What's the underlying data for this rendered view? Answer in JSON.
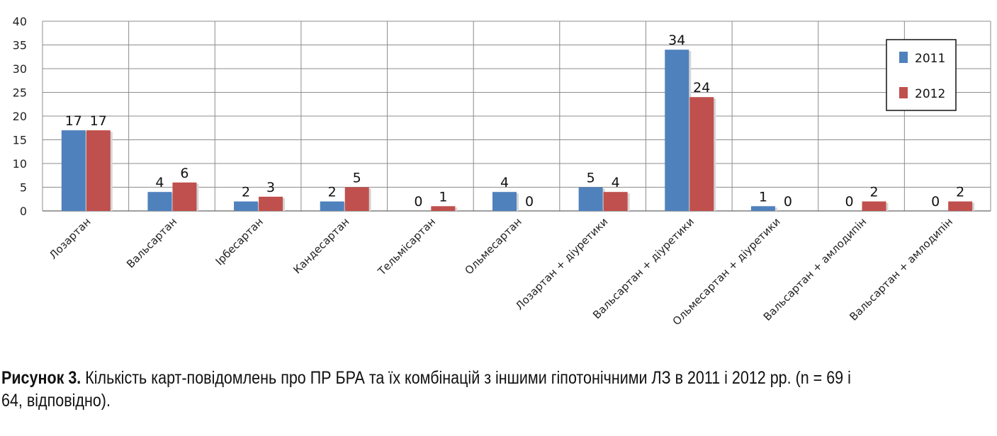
{
  "chart_data": {
    "type": "bar",
    "categories": [
      "Лозартан",
      "Вальсартан",
      "Ірбесартан",
      "Кандесартан",
      "Тельмісартан",
      "Ольмесартан",
      "Лозартан + діуретики",
      "Вальсартан + діуретики",
      "Ольмесартан + діуретики",
      "Вальсартан + амлодипін",
      "Вальсартан + амлодипін"
    ],
    "series": [
      {
        "name": "2011",
        "color": "#4f81bd",
        "values": [
          17,
          4,
          2,
          2,
          0,
          4,
          5,
          34,
          1,
          0,
          0
        ]
      },
      {
        "name": "2012",
        "color": "#c0504d",
        "values": [
          17,
          6,
          3,
          5,
          1,
          0,
          4,
          24,
          0,
          2,
          2
        ]
      }
    ],
    "ylim": [
      0,
      40
    ],
    "yticks": [
      "0",
      "5",
      "10",
      "15",
      "20",
      "25",
      "30",
      "35",
      "40"
    ],
    "grid": true,
    "legend_position": "top-right",
    "title": "",
    "xlabel": "",
    "ylabel": ""
  },
  "caption": {
    "label": "Рисунок 3.",
    "text": " Кількість карт-повідомлень про ПР БРА та їх комбінацій з іншими гіпотонічними ЛЗ в 2011 і 2012 рр. (n = 69 і 64, відповідно)."
  }
}
